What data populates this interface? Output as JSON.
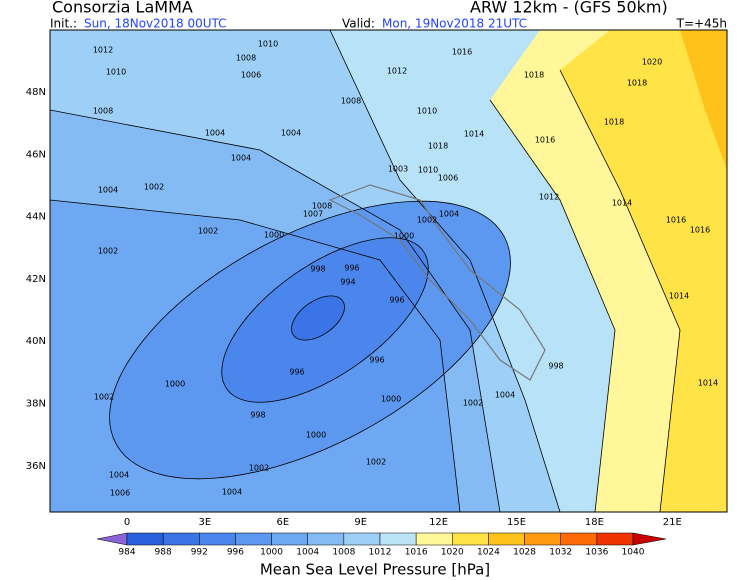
{
  "header": {
    "title": "Consorzia LaMMA",
    "model": "ARW 12km - (GFS 50km)",
    "init_label": "Init.:",
    "init": "Sun, 18Nov2018 00UTC",
    "valid_label": "Valid:",
    "valid": "Mon, 19Nov2018 21UTC",
    "step": "T=+45h"
  },
  "map": {
    "lon_labels": [
      "0",
      "3E",
      "6E",
      "9E",
      "12E",
      "15E",
      "18E",
      "21E"
    ],
    "lat_labels": [
      "48N",
      "46N",
      "44N",
      "42N",
      "40N",
      "38N",
      "36N"
    ],
    "isobar_labels": [
      "1012",
      "1010",
      "1008",
      "1006",
      "1010",
      "1016",
      "1012",
      "1018",
      "1020",
      "1018",
      "1008",
      "1008",
      "1010",
      "1004",
      "1004",
      "1018",
      "1014",
      "1016",
      "1004",
      "1018",
      "1003",
      "1010",
      "1006",
      "1004",
      "1002",
      "1012",
      "1014",
      "1008",
      "1007",
      "1004",
      "1002",
      "1016",
      "1016",
      "1002",
      "1000",
      "1000",
      "1002",
      "998",
      "996",
      "994",
      "1014",
      "996",
      "996",
      "998",
      "1000",
      "996",
      "1014",
      "1002",
      "1000",
      "1002",
      "1004",
      "998",
      "1000",
      "1002",
      "1002",
      "1004",
      "1006",
      "1004"
    ]
  },
  "colorbar": {
    "levels": [
      984,
      988,
      992,
      996,
      1000,
      1004,
      1008,
      1012,
      1016,
      1020,
      1024,
      1028,
      1032,
      1036,
      1040
    ],
    "colors": [
      "#8a63d8",
      "#2a5fdc",
      "#3a74e6",
      "#4a86ec",
      "#5c97f0",
      "#6ea8f2",
      "#84bbf4",
      "#9ecff6",
      "#bce4f8",
      "#fff79a",
      "#ffe347",
      "#ffc21a",
      "#ff9a10",
      "#ff6a08",
      "#ee3300",
      "#c80000"
    ],
    "title": "Mean Sea Level Pressure [hPa]"
  }
}
